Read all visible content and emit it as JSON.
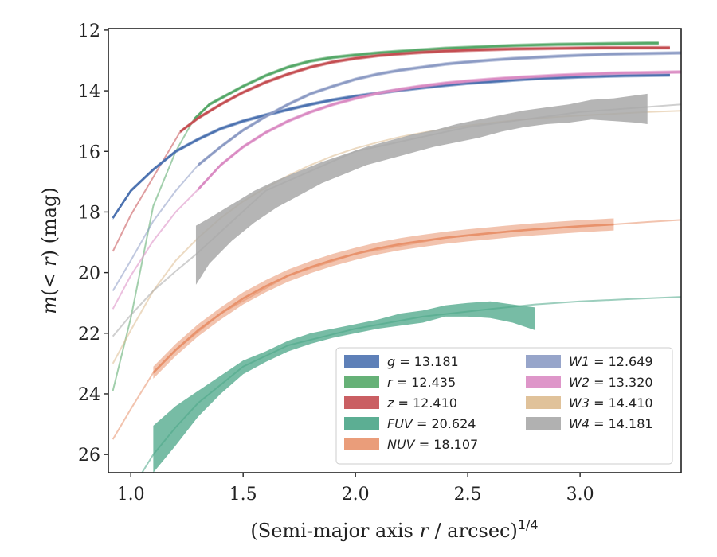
{
  "chart_data": {
    "type": "line",
    "xlabel": "(Semi-major axis r / arcsec)^1/4",
    "ylabel": "m(<r) (mag)",
    "xlim": [
      0.9,
      3.45
    ],
    "ylim": [
      26.6,
      11.95
    ],
    "y_inverted": true,
    "x_ticks": [
      1.0,
      1.5,
      2.0,
      2.5,
      3.0
    ],
    "x_tick_labels": [
      "1.0",
      "1.5",
      "2.0",
      "2.5",
      "3.0"
    ],
    "y_ticks": [
      12,
      14,
      16,
      18,
      20,
      22,
      24,
      26
    ],
    "y_tick_labels": [
      "12",
      "14",
      "16",
      "18",
      "20",
      "22",
      "24",
      "26"
    ],
    "grid": false,
    "legend_position": "lower-right",
    "series": [
      {
        "name": "g",
        "legend_math": "g",
        "legend_value": "= 13.181",
        "color": "#4c72b0",
        "band_width": 0.06,
        "data": [
          [
            0.92,
            18.2
          ],
          [
            1.0,
            17.3
          ],
          [
            1.1,
            16.6
          ],
          [
            1.2,
            16.0
          ],
          [
            1.3,
            15.6
          ],
          [
            1.4,
            15.25
          ],
          [
            1.5,
            15.0
          ],
          [
            1.6,
            14.8
          ],
          [
            1.7,
            14.62
          ],
          [
            1.8,
            14.45
          ],
          [
            1.9,
            14.3
          ],
          [
            2.0,
            14.18
          ],
          [
            2.1,
            14.08
          ],
          [
            2.2,
            13.98
          ],
          [
            2.3,
            13.9
          ],
          [
            2.4,
            13.82
          ],
          [
            2.5,
            13.75
          ],
          [
            2.6,
            13.7
          ],
          [
            2.7,
            13.65
          ],
          [
            2.8,
            13.6
          ],
          [
            2.9,
            13.57
          ],
          [
            3.0,
            13.54
          ],
          [
            3.1,
            13.52
          ],
          [
            3.2,
            13.5
          ],
          [
            3.3,
            13.49
          ],
          [
            3.4,
            13.48
          ]
        ],
        "faint_data": []
      },
      {
        "name": "r",
        "legend_math": "r",
        "legend_value": "= 12.435",
        "color": "#55a868",
        "band_width": 0.06,
        "data": [
          [
            1.28,
            14.95
          ],
          [
            1.35,
            14.45
          ],
          [
            1.45,
            14.05
          ],
          [
            1.5,
            13.85
          ],
          [
            1.6,
            13.5
          ],
          [
            1.7,
            13.22
          ],
          [
            1.8,
            13.02
          ],
          [
            1.9,
            12.9
          ],
          [
            2.0,
            12.82
          ],
          [
            2.1,
            12.75
          ],
          [
            2.2,
            12.7
          ],
          [
            2.3,
            12.65
          ],
          [
            2.4,
            12.6
          ],
          [
            2.5,
            12.57
          ],
          [
            2.6,
            12.54
          ],
          [
            2.7,
            12.51
          ],
          [
            2.8,
            12.49
          ],
          [
            2.9,
            12.47
          ],
          [
            3.0,
            12.46
          ],
          [
            3.1,
            12.45
          ],
          [
            3.2,
            12.44
          ],
          [
            3.3,
            12.43
          ],
          [
            3.35,
            12.43
          ]
        ],
        "faint_data": [
          [
            0.92,
            23.9
          ],
          [
            1.0,
            21.5
          ],
          [
            1.1,
            17.8
          ],
          [
            1.2,
            16.0
          ],
          [
            1.28,
            14.95
          ]
        ]
      },
      {
        "name": "z",
        "legend_math": "z",
        "legend_value": "= 12.410",
        "color": "#c44e52",
        "band_width": 0.06,
        "data": [
          [
            1.22,
            15.35
          ],
          [
            1.3,
            14.9
          ],
          [
            1.4,
            14.45
          ],
          [
            1.5,
            14.05
          ],
          [
            1.6,
            13.72
          ],
          [
            1.7,
            13.45
          ],
          [
            1.8,
            13.22
          ],
          [
            1.9,
            13.05
          ],
          [
            2.0,
            12.93
          ],
          [
            2.1,
            12.84
          ],
          [
            2.2,
            12.78
          ],
          [
            2.3,
            12.73
          ],
          [
            2.4,
            12.69
          ],
          [
            2.5,
            12.66
          ],
          [
            2.6,
            12.64
          ],
          [
            2.7,
            12.62
          ],
          [
            2.8,
            12.61
          ],
          [
            2.9,
            12.6
          ],
          [
            3.0,
            12.59
          ],
          [
            3.1,
            12.58
          ],
          [
            3.2,
            12.58
          ],
          [
            3.3,
            12.58
          ],
          [
            3.4,
            12.58
          ]
        ],
        "faint_data": [
          [
            0.92,
            19.3
          ],
          [
            1.0,
            18.1
          ],
          [
            1.1,
            16.85
          ],
          [
            1.22,
            15.35
          ]
        ]
      },
      {
        "name": "FUV",
        "legend_math": "FUV",
        "legend_value": "= 20.624",
        "color": "#4aa587",
        "band_width": null,
        "band": [
          [
            1.1,
            25.05,
            26.6
          ],
          [
            1.2,
            24.4,
            25.7
          ],
          [
            1.3,
            23.9,
            24.75
          ],
          [
            1.4,
            23.4,
            24.0
          ],
          [
            1.5,
            22.9,
            23.35
          ],
          [
            1.6,
            22.6,
            22.95
          ],
          [
            1.7,
            22.25,
            22.6
          ],
          [
            1.8,
            22.0,
            22.35
          ],
          [
            1.9,
            21.85,
            22.15
          ],
          [
            2.0,
            21.7,
            22.0
          ],
          [
            2.1,
            21.55,
            21.85
          ],
          [
            2.2,
            21.35,
            21.75
          ],
          [
            2.3,
            21.25,
            21.65
          ],
          [
            2.4,
            21.08,
            21.45
          ],
          [
            2.5,
            21.0,
            21.45
          ],
          [
            2.6,
            20.95,
            21.5
          ],
          [
            2.7,
            21.05,
            21.65
          ],
          [
            2.8,
            21.15,
            21.9
          ]
        ],
        "faint_data": [
          [
            1.05,
            26.6
          ],
          [
            1.1,
            26.0
          ],
          [
            1.2,
            25.1
          ],
          [
            1.3,
            24.3
          ],
          [
            1.5,
            23.1
          ],
          [
            1.7,
            22.4
          ],
          [
            2.0,
            21.85
          ],
          [
            2.3,
            21.45
          ],
          [
            2.6,
            21.2
          ],
          [
            2.8,
            21.05
          ],
          [
            3.0,
            20.95
          ],
          [
            3.2,
            20.88
          ],
          [
            3.45,
            20.8
          ]
        ],
        "data": []
      },
      {
        "name": "NUV",
        "legend_math": "NUV",
        "legend_value": "= 18.107",
        "color": "#e8926c",
        "band_width": 0.2,
        "data": [
          [
            1.1,
            23.3
          ],
          [
            1.2,
            22.55
          ],
          [
            1.3,
            21.9
          ],
          [
            1.4,
            21.35
          ],
          [
            1.5,
            20.85
          ],
          [
            1.6,
            20.45
          ],
          [
            1.7,
            20.1
          ],
          [
            1.8,
            19.82
          ],
          [
            1.9,
            19.58
          ],
          [
            2.0,
            19.38
          ],
          [
            2.1,
            19.2
          ],
          [
            2.2,
            19.06
          ],
          [
            2.3,
            18.95
          ],
          [
            2.4,
            18.85
          ],
          [
            2.5,
            18.77
          ],
          [
            2.6,
            18.7
          ],
          [
            2.7,
            18.63
          ],
          [
            2.8,
            18.57
          ],
          [
            2.9,
            18.52
          ],
          [
            3.0,
            18.47
          ],
          [
            3.1,
            18.43
          ],
          [
            3.15,
            18.41
          ]
        ],
        "faint_data": [
          [
            0.92,
            25.5
          ],
          [
            1.0,
            24.5
          ],
          [
            1.1,
            23.3
          ],
          [
            1.2,
            22.55
          ],
          [
            1.4,
            21.35
          ],
          [
            1.7,
            20.1
          ],
          [
            2.0,
            19.38
          ],
          [
            2.4,
            18.85
          ],
          [
            2.8,
            18.57
          ],
          [
            3.15,
            18.41
          ],
          [
            3.3,
            18.33
          ],
          [
            3.45,
            18.26
          ]
        ]
      },
      {
        "name": "W1",
        "legend_math": "W1",
        "legend_value": "= 12.649",
        "color": "#8c9bc4",
        "band_width": 0.06,
        "data": [
          [
            1.3,
            16.45
          ],
          [
            1.4,
            15.85
          ],
          [
            1.5,
            15.3
          ],
          [
            1.6,
            14.85
          ],
          [
            1.7,
            14.45
          ],
          [
            1.8,
            14.1
          ],
          [
            1.9,
            13.85
          ],
          [
            2.0,
            13.62
          ],
          [
            2.1,
            13.45
          ],
          [
            2.2,
            13.32
          ],
          [
            2.3,
            13.22
          ],
          [
            2.4,
            13.12
          ],
          [
            2.5,
            13.05
          ],
          [
            2.6,
            12.99
          ],
          [
            2.7,
            12.94
          ],
          [
            2.8,
            12.9
          ],
          [
            2.9,
            12.86
          ],
          [
            3.0,
            12.83
          ],
          [
            3.1,
            12.8
          ],
          [
            3.2,
            12.78
          ],
          [
            3.3,
            12.77
          ],
          [
            3.45,
            12.75
          ]
        ],
        "faint_data": [
          [
            0.92,
            20.6
          ],
          [
            1.0,
            19.6
          ],
          [
            1.1,
            18.3
          ],
          [
            1.2,
            17.3
          ],
          [
            1.3,
            16.45
          ]
        ]
      },
      {
        "name": "W2",
        "legend_math": "W2",
        "legend_value": "= 13.320",
        "color": "#da8bc3",
        "band_width": 0.06,
        "data": [
          [
            1.3,
            17.25
          ],
          [
            1.4,
            16.45
          ],
          [
            1.5,
            15.85
          ],
          [
            1.6,
            15.38
          ],
          [
            1.7,
            15.0
          ],
          [
            1.8,
            14.7
          ],
          [
            1.9,
            14.45
          ],
          [
            2.0,
            14.25
          ],
          [
            2.1,
            14.08
          ],
          [
            2.2,
            13.95
          ],
          [
            2.3,
            13.84
          ],
          [
            2.4,
            13.75
          ],
          [
            2.5,
            13.68
          ],
          [
            2.6,
            13.62
          ],
          [
            2.7,
            13.57
          ],
          [
            2.8,
            13.53
          ],
          [
            2.9,
            13.49
          ],
          [
            3.0,
            13.46
          ],
          [
            3.1,
            13.43
          ],
          [
            3.2,
            13.41
          ],
          [
            3.3,
            13.4
          ],
          [
            3.45,
            13.38
          ]
        ],
        "faint_data": [
          [
            0.92,
            21.2
          ],
          [
            1.0,
            20.1
          ],
          [
            1.1,
            18.95
          ],
          [
            1.2,
            18.0
          ],
          [
            1.3,
            17.25
          ]
        ]
      },
      {
        "name": "W3",
        "legend_math": "W3",
        "legend_value": "= 14.410",
        "color": "#ddbb8f",
        "band_width": 0.06,
        "data": [],
        "faint_data": [
          [
            0.92,
            23.0
          ],
          [
            1.0,
            21.9
          ],
          [
            1.1,
            20.6
          ],
          [
            1.2,
            19.6
          ],
          [
            1.3,
            18.85
          ],
          [
            1.4,
            18.2
          ],
          [
            1.5,
            17.65
          ],
          [
            1.6,
            17.2
          ],
          [
            1.7,
            16.8
          ],
          [
            1.8,
            16.45
          ],
          [
            1.9,
            16.15
          ],
          [
            2.0,
            15.9
          ],
          [
            2.1,
            15.7
          ],
          [
            2.2,
            15.52
          ],
          [
            2.3,
            15.38
          ],
          [
            2.4,
            15.26
          ],
          [
            2.5,
            15.15
          ],
          [
            2.6,
            15.06
          ],
          [
            2.7,
            14.98
          ],
          [
            2.8,
            14.92
          ],
          [
            2.9,
            14.86
          ],
          [
            3.0,
            14.82
          ],
          [
            3.1,
            14.78
          ],
          [
            3.2,
            14.74
          ],
          [
            3.3,
            14.7
          ],
          [
            3.45,
            14.66
          ]
        ]
      },
      {
        "name": "W4",
        "legend_math": "W4",
        "legend_value": "= 14.181",
        "color": "#a8a8a8",
        "band_width": null,
        "band": [
          [
            1.29,
            18.45,
            20.4
          ],
          [
            1.35,
            18.2,
            19.7
          ],
          [
            1.45,
            17.75,
            18.95
          ],
          [
            1.55,
            17.3,
            18.35
          ],
          [
            1.65,
            16.95,
            17.85
          ],
          [
            1.75,
            16.65,
            17.45
          ],
          [
            1.85,
            16.35,
            17.05
          ],
          [
            1.95,
            16.1,
            16.75
          ],
          [
            2.05,
            15.85,
            16.45
          ],
          [
            2.15,
            15.65,
            16.25
          ],
          [
            2.25,
            15.45,
            16.05
          ],
          [
            2.35,
            15.3,
            15.85
          ],
          [
            2.45,
            15.1,
            15.7
          ],
          [
            2.55,
            14.95,
            15.55
          ],
          [
            2.65,
            14.8,
            15.35
          ],
          [
            2.75,
            14.65,
            15.2
          ],
          [
            2.85,
            14.55,
            15.1
          ],
          [
            2.95,
            14.45,
            15.05
          ],
          [
            3.05,
            14.3,
            14.95
          ],
          [
            3.15,
            14.25,
            15.0
          ],
          [
            3.25,
            14.15,
            15.05
          ],
          [
            3.3,
            14.1,
            15.1
          ]
        ],
        "faint_data": [
          [
            0.92,
            22.1
          ],
          [
            1.0,
            21.4
          ],
          [
            1.1,
            20.6
          ],
          [
            1.2,
            19.95
          ],
          [
            1.29,
            19.4
          ],
          [
            1.6,
            17.3
          ],
          [
            2.0,
            16.0
          ],
          [
            2.5,
            15.2
          ],
          [
            3.0,
            14.7
          ],
          [
            3.45,
            14.45
          ]
        ],
        "data": []
      }
    ]
  }
}
